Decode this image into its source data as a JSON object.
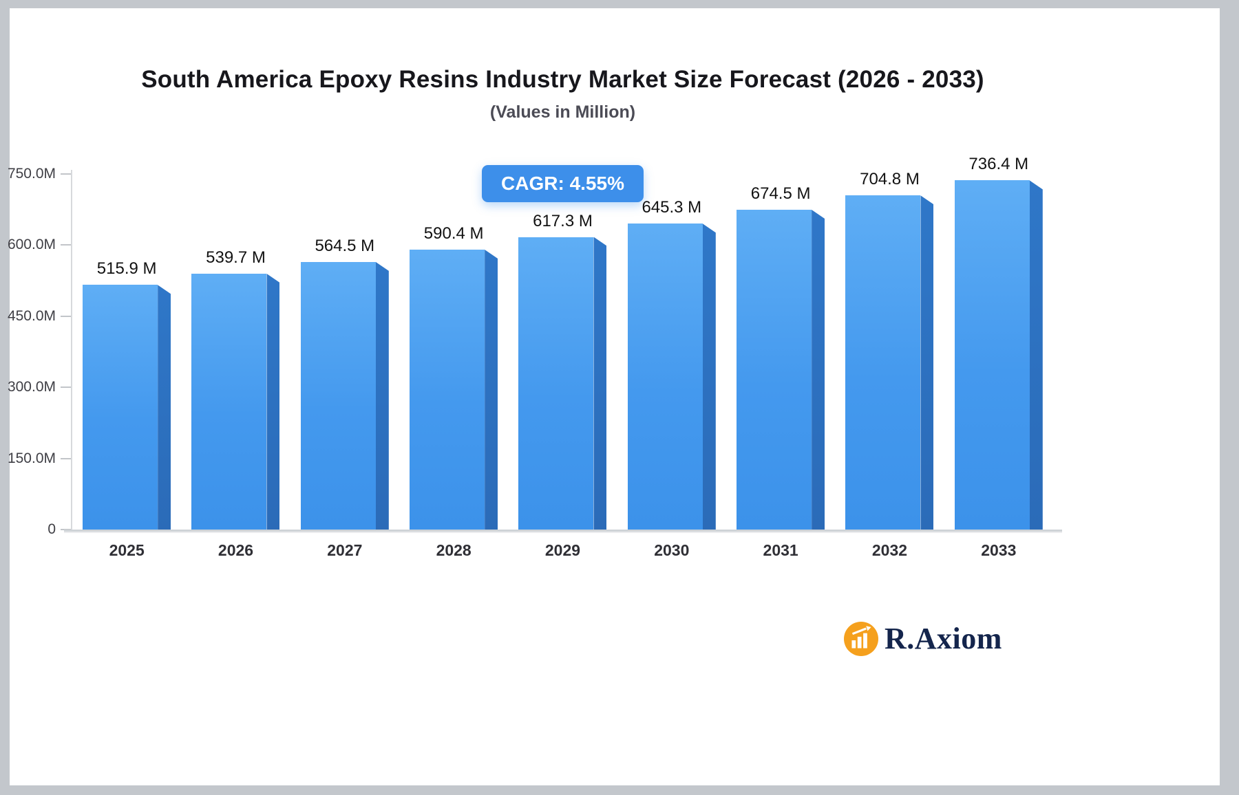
{
  "chart_data": {
    "type": "bar",
    "title": "South America Epoxy Resins Industry Market Size Forecast (2026 - 2033)",
    "subtitle": "(Values in Million)",
    "cagr_label": "CAGR: 4.55%",
    "categories": [
      "2025",
      "2026",
      "2027",
      "2028",
      "2029",
      "2030",
      "2031",
      "2032",
      "2033"
    ],
    "values": [
      515.9,
      539.7,
      564.5,
      590.4,
      617.3,
      645.3,
      674.5,
      704.8,
      736.4
    ],
    "value_labels": [
      "515.9 M",
      "539.7 M",
      "564.5 M",
      "590.4 M",
      "617.3 M",
      "645.3 M",
      "674.5 M",
      "704.8 M",
      "736.4 M"
    ],
    "y_tick_labels": [
      "750.0M",
      "600.0M",
      "450.0M",
      "300.0M",
      "150.0M",
      "0"
    ],
    "ylim": [
      0,
      750
    ],
    "grid": false,
    "legend": "none",
    "colors": {
      "bar_front_top": "#5FAEF5",
      "bar_front_bottom": "#3C92EA",
      "bar_side": "#2D72C2",
      "badge_bg": "#3D8FEA",
      "badge_text": "#FFFFFF"
    }
  },
  "branding": {
    "logo_text": "R.Axiom",
    "logo_icon": "bar-chart-rising-arrow-icon",
    "logo_icon_color": "#F5A01D",
    "logo_text_color": "#14254C"
  }
}
